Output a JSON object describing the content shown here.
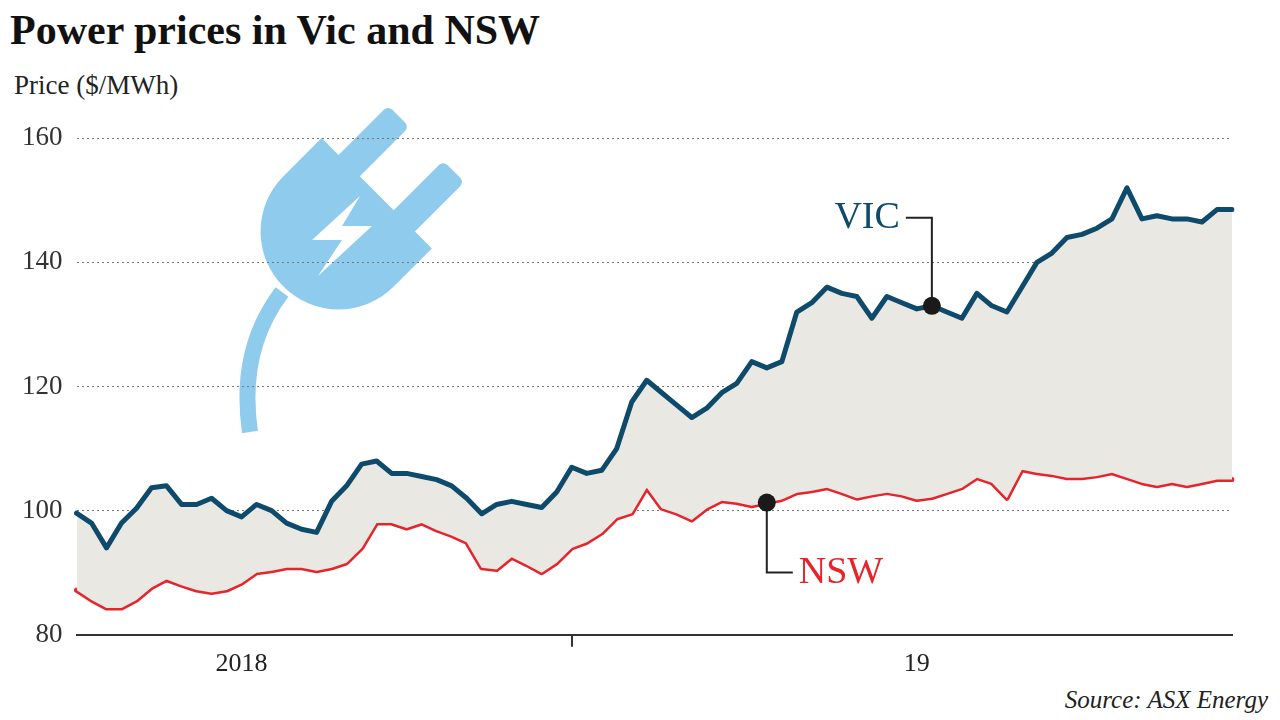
{
  "chart_data": {
    "type": "line",
    "title": "Power prices in Vic and NSW",
    "ylabel": "Price ($/MWh)",
    "source": "Source: ASX Energy",
    "categories": [
      null,
      null,
      null,
      null,
      null,
      null,
      null,
      null,
      null,
      null,
      null,
      "2018",
      null,
      null,
      null,
      null,
      null,
      null,
      null,
      null,
      null,
      null,
      null,
      null,
      null,
      null,
      null,
      null,
      null,
      null,
      null,
      null,
      null,
      null,
      null,
      null,
      null,
      null,
      null,
      null,
      null,
      null,
      null,
      null,
      null,
      null,
      null,
      null,
      null,
      null,
      null,
      null,
      null,
      null,
      null,
      null,
      "19",
      null,
      null,
      null,
      null,
      null,
      null,
      null,
      null,
      null,
      null,
      null,
      null,
      null,
      null,
      null,
      null,
      null,
      null,
      null,
      null,
      null
    ],
    "series": [
      {
        "name": "VIC",
        "color": "#0d4a6b",
        "values": [
          99.6,
          98,
          94,
          98,
          100.4,
          103.7,
          104,
          101,
          101,
          102,
          100,
          99,
          101,
          100,
          98,
          97,
          96.5,
          101.5,
          104,
          107.5,
          108,
          106,
          106,
          105.5,
          105,
          104,
          102,
          99.5,
          101,
          101.5,
          101,
          100.5,
          103,
          107,
          106,
          106.5,
          110,
          117.5,
          121,
          119,
          117,
          115,
          116.5,
          119,
          120.5,
          124,
          123,
          124,
          132,
          133.5,
          136,
          135,
          134.5,
          131,
          134.5,
          133.5,
          132.5,
          133,
          132,
          131,
          135,
          133,
          132,
          136,
          140,
          141.5,
          144,
          144.5,
          145.5,
          147,
          152,
          147,
          147.5,
          147,
          147,
          146.5,
          148.5,
          148.5
        ]
      },
      {
        "name": "NSW",
        "color": "#e5252b",
        "values": [
          87.2,
          85.6,
          84.3,
          84.3,
          85.6,
          87.6,
          88.9,
          88,
          87.2,
          86.8,
          87.2,
          88.3,
          90,
          90.3,
          90.8,
          90.8,
          90.3,
          90.8,
          91.6,
          94,
          98,
          98,
          97.2,
          98,
          96.9,
          96,
          94.9,
          90.8,
          90.5,
          92.5,
          91.3,
          90,
          91.6,
          94,
          94.9,
          96.4,
          98.8,
          99.6,
          103.7,
          100.4,
          99.6,
          98.5,
          100.4,
          101.6,
          101.3,
          100.8,
          101.3,
          101.8,
          102.9,
          103.2,
          103.7,
          102.9,
          102,
          102.5,
          102.9,
          102.5,
          101.8,
          102.1,
          102.9,
          103.7,
          105.3,
          104.5,
          102,
          106.6,
          106.1,
          105.8,
          105.3,
          105.3,
          105.6,
          106.1,
          105.3,
          104.5,
          104,
          104.5,
          104,
          104.5,
          105,
          105
        ]
      }
    ],
    "ylim": [
      80,
      160
    ],
    "yticks": [
      80,
      100,
      120,
      140,
      160
    ],
    "grid": true
  }
}
